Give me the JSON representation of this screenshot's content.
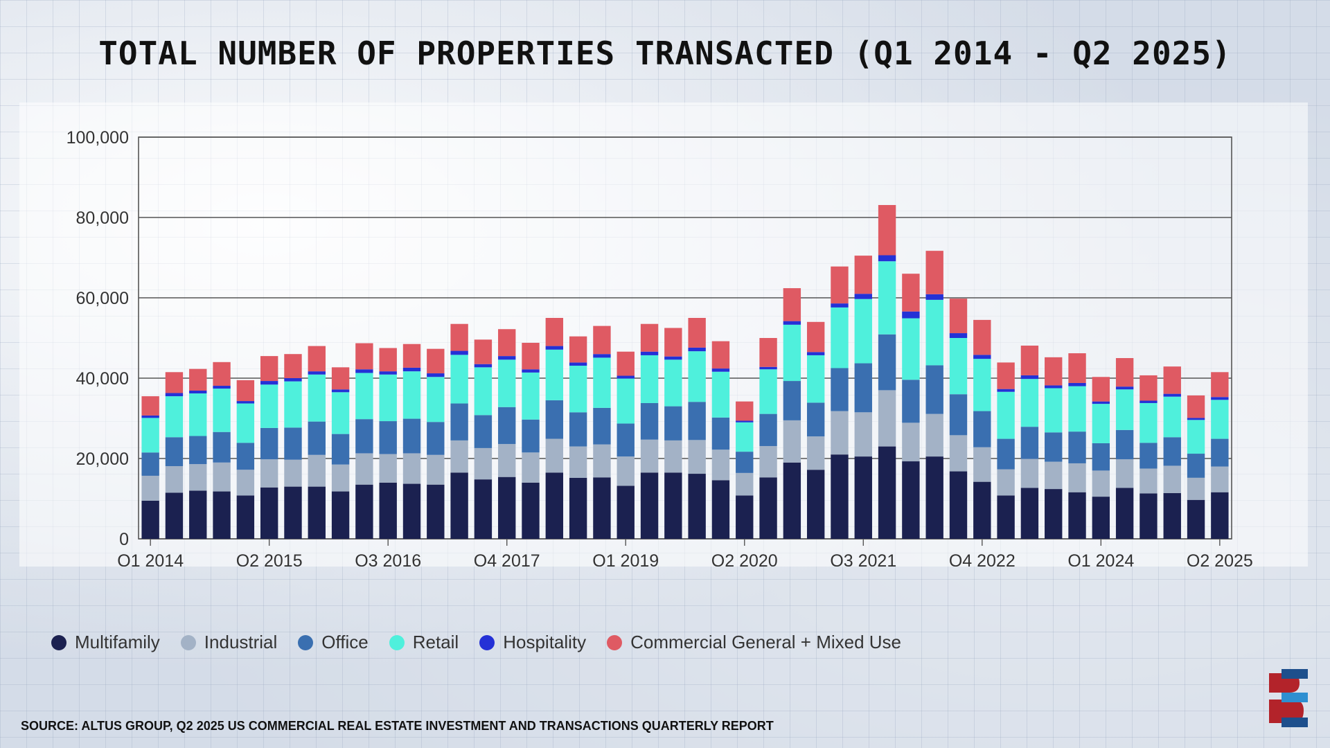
{
  "chart_data": {
    "type": "bar",
    "stacked": true,
    "title": "Total Number of Properties Transacted (Q1 2014 - Q2 2025)",
    "ylim": [
      0,
      100000
    ],
    "yticks": [
      "0",
      "20,000",
      "40,000",
      "60,000",
      "80,000",
      "100,000"
    ],
    "ytick_values": [
      0,
      20000,
      40000,
      60000,
      80000,
      100000
    ],
    "xtick_labels": [
      {
        "index": 0,
        "label": "Q1 2014"
      },
      {
        "index": 5,
        "label": "Q2 2015"
      },
      {
        "index": 10,
        "label": "Q3 2016"
      },
      {
        "index": 15,
        "label": "Q4 2017"
      },
      {
        "index": 20,
        "label": "Q1 2019"
      },
      {
        "index": 25,
        "label": "Q2 2020"
      },
      {
        "index": 30,
        "label": "Q3 2021"
      },
      {
        "index": 35,
        "label": "Q4 2022"
      },
      {
        "index": 40,
        "label": "Q1 2024"
      },
      {
        "index": 45,
        "label": "Q2 2025"
      }
    ],
    "grid": true,
    "legend_position": "bottom-left",
    "categories": [
      "Q1 2014",
      "Q2 2014",
      "Q3 2014",
      "Q4 2014",
      "Q1 2015",
      "Q2 2015",
      "Q3 2015",
      "Q4 2015",
      "Q1 2016",
      "Q2 2016",
      "Q3 2016",
      "Q4 2016",
      "Q1 2017",
      "Q2 2017",
      "Q3 2017",
      "Q4 2017",
      "Q1 2018",
      "Q2 2018",
      "Q3 2018",
      "Q4 2018",
      "Q1 2019",
      "Q2 2019",
      "Q3 2019",
      "Q4 2019",
      "Q1 2020",
      "Q2 2020",
      "Q3 2020",
      "Q4 2020",
      "Q1 2021",
      "Q2 2021",
      "Q3 2021",
      "Q4 2021",
      "Q1 2022",
      "Q2 2022",
      "Q3 2022",
      "Q4 2022",
      "Q1 2023",
      "Q2 2023",
      "Q3 2023",
      "Q4 2023",
      "Q1 2024",
      "Q2 2024",
      "Q3 2024",
      "Q4 2024",
      "Q1 2025",
      "Q2 2025"
    ],
    "series": [
      {
        "name": "Multifamily",
        "color": "#1b2150",
        "values": [
          9500,
          11500,
          12000,
          11800,
          10800,
          12800,
          13000,
          13000,
          11800,
          13500,
          14000,
          13700,
          13500,
          16500,
          14800,
          15400,
          14000,
          16500,
          15200,
          15300,
          13200,
          16500,
          16500,
          16200,
          14600,
          10800,
          15300,
          19000,
          17200,
          21000,
          20500,
          23000,
          19300,
          20500,
          16800,
          14200,
          10800,
          12700,
          12400,
          11600,
          10500,
          12700,
          11300,
          11400,
          9700,
          11600
        ]
      },
      {
        "name": "Industrial",
        "color": "#a3b2c6",
        "values": [
          6200,
          6600,
          6600,
          7200,
          6400,
          7000,
          6700,
          7900,
          6700,
          7800,
          7100,
          7600,
          7400,
          8000,
          7800,
          8200,
          7500,
          8400,
          7800,
          8200,
          7300,
          8200,
          8000,
          8400,
          7600,
          5600,
          7800,
          10500,
          8300,
          10800,
          11000,
          14000,
          9600,
          10600,
          9000,
          8600,
          6500,
          7200,
          6800,
          7200,
          6500,
          7100,
          6200,
          6800,
          5500,
          6400
        ]
      },
      {
        "name": "Office",
        "color": "#3a6fb0",
        "values": [
          5800,
          7200,
          7000,
          7600,
          6700,
          7800,
          8000,
          8300,
          7600,
          8500,
          8200,
          8600,
          8200,
          9200,
          8200,
          9200,
          8200,
          9600,
          8500,
          9100,
          8200,
          9100,
          8500,
          9500,
          8000,
          5300,
          8000,
          9800,
          8400,
          10700,
          12200,
          13900,
          10700,
          12100,
          10200,
          9000,
          7600,
          8000,
          7300,
          7900,
          6800,
          7300,
          6400,
          7100,
          6000,
          6900
        ]
      },
      {
        "name": "Retail",
        "color": "#4ff0dc",
        "values": [
          8600,
          10200,
          10600,
          10800,
          9800,
          10800,
          11500,
          11700,
          10400,
          11500,
          11600,
          11800,
          11200,
          12100,
          11900,
          11800,
          11700,
          12600,
          11600,
          12500,
          11200,
          11900,
          11600,
          12600,
          11400,
          7300,
          11100,
          14000,
          11800,
          15100,
          16000,
          18200,
          15300,
          16300,
          14000,
          13000,
          11700,
          11900,
          11000,
          11300,
          9800,
          10100,
          9900,
          10100,
          8400,
          9700
        ]
      },
      {
        "name": "Hospitality",
        "color": "#2431d6",
        "values": [
          600,
          800,
          700,
          700,
          600,
          900,
          800,
          800,
          700,
          900,
          800,
          900,
          900,
          1000,
          800,
          900,
          800,
          900,
          800,
          900,
          700,
          900,
          800,
          900,
          800,
          400,
          600,
          900,
          800,
          1000,
          1300,
          1500,
          1700,
          1400,
          1200,
          1000,
          700,
          900,
          700,
          800,
          600,
          700,
          600,
          700,
          500,
          700
        ]
      },
      {
        "name": "Commercial General + Mixed Use",
        "color": "#df5a63",
        "values": [
          4800,
          5200,
          5400,
          5900,
          5200,
          6200,
          6000,
          6300,
          5500,
          6500,
          5800,
          5900,
          6100,
          6700,
          6100,
          6700,
          6600,
          7000,
          6500,
          7000,
          6000,
          6900,
          7100,
          7400,
          6800,
          4800,
          7200,
          8200,
          7500,
          9200,
          9500,
          12500,
          9400,
          10800,
          8600,
          8700,
          6600,
          7400,
          7000,
          7400,
          6100,
          7100,
          6300,
          6800,
          5600,
          6200
        ]
      }
    ]
  },
  "source": "SOURCE: ALTUS GROUP, Q2 2025 US COMMERCIAL REAL ESTATE INVESTMENT AND TRANSACTIONS QUARTERLY REPORT",
  "logo": {
    "colors": [
      "#b3232a",
      "#1d4f8c"
    ]
  }
}
